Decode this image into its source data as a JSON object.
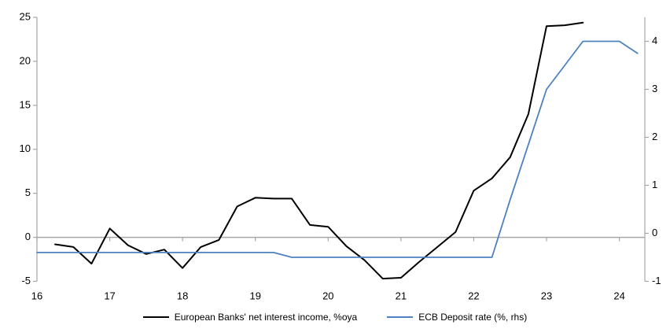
{
  "chart_data": {
    "type": "line",
    "title": "",
    "x_axis": {
      "ticks": [
        16,
        17,
        18,
        19,
        20,
        21,
        22,
        23,
        24
      ],
      "range": [
        16,
        24.35
      ]
    },
    "left_axis": {
      "ticks": [
        -5,
        0,
        5,
        10,
        15,
        20,
        25
      ],
      "range": [
        -5,
        25
      ]
    },
    "right_axis": {
      "ticks": [
        -1,
        0,
        1,
        2,
        3,
        4
      ],
      "range": [
        -1,
        4.5
      ]
    },
    "grid": "zero-line-only",
    "legend_position": "bottom-center",
    "colors": {
      "axis": "#a6a6a6",
      "text": "#000000",
      "background": "#ffffff"
    },
    "series": [
      {
        "name": "European Banks' net interest income, %oya",
        "axis": "left",
        "color": "#000000",
        "stroke_width": 2,
        "points": [
          [
            16.25,
            -0.8
          ],
          [
            16.5,
            -1.1
          ],
          [
            16.75,
            -3.0
          ],
          [
            17.0,
            1.0
          ],
          [
            17.25,
            -0.9
          ],
          [
            17.5,
            -1.9
          ],
          [
            17.75,
            -1.4
          ],
          [
            18.0,
            -3.5
          ],
          [
            18.25,
            -1.1
          ],
          [
            18.5,
            -0.3
          ],
          [
            18.75,
            3.5
          ],
          [
            19.0,
            4.5
          ],
          [
            19.25,
            4.4
          ],
          [
            19.5,
            4.4
          ],
          [
            19.75,
            1.4
          ],
          [
            20.0,
            1.2
          ],
          [
            20.25,
            -1.0
          ],
          [
            20.5,
            -2.6
          ],
          [
            20.75,
            -4.7
          ],
          [
            21.0,
            -4.6
          ],
          [
            21.25,
            -2.8
          ],
          [
            21.5,
            -1.1
          ],
          [
            21.75,
            0.6
          ],
          [
            22.0,
            5.3
          ],
          [
            22.25,
            6.7
          ],
          [
            22.5,
            9.1
          ],
          [
            22.75,
            14.0
          ],
          [
            23.0,
            24.0
          ],
          [
            23.25,
            24.1
          ],
          [
            23.5,
            24.4
          ]
        ]
      },
      {
        "name": "ECB Deposit rate (%, rhs)",
        "axis": "right",
        "color": "#4e82be",
        "stroke_width": 1.8,
        "points": [
          [
            16.0,
            -0.4
          ],
          [
            19.25,
            -0.4
          ],
          [
            19.5,
            -0.5
          ],
          [
            22.25,
            -0.5
          ],
          [
            22.5,
            0.7
          ],
          [
            22.75,
            1.85
          ],
          [
            23.0,
            3.0
          ],
          [
            23.25,
            3.5
          ],
          [
            23.5,
            4.0
          ],
          [
            24.0,
            4.0
          ],
          [
            24.25,
            3.75
          ]
        ]
      }
    ]
  }
}
